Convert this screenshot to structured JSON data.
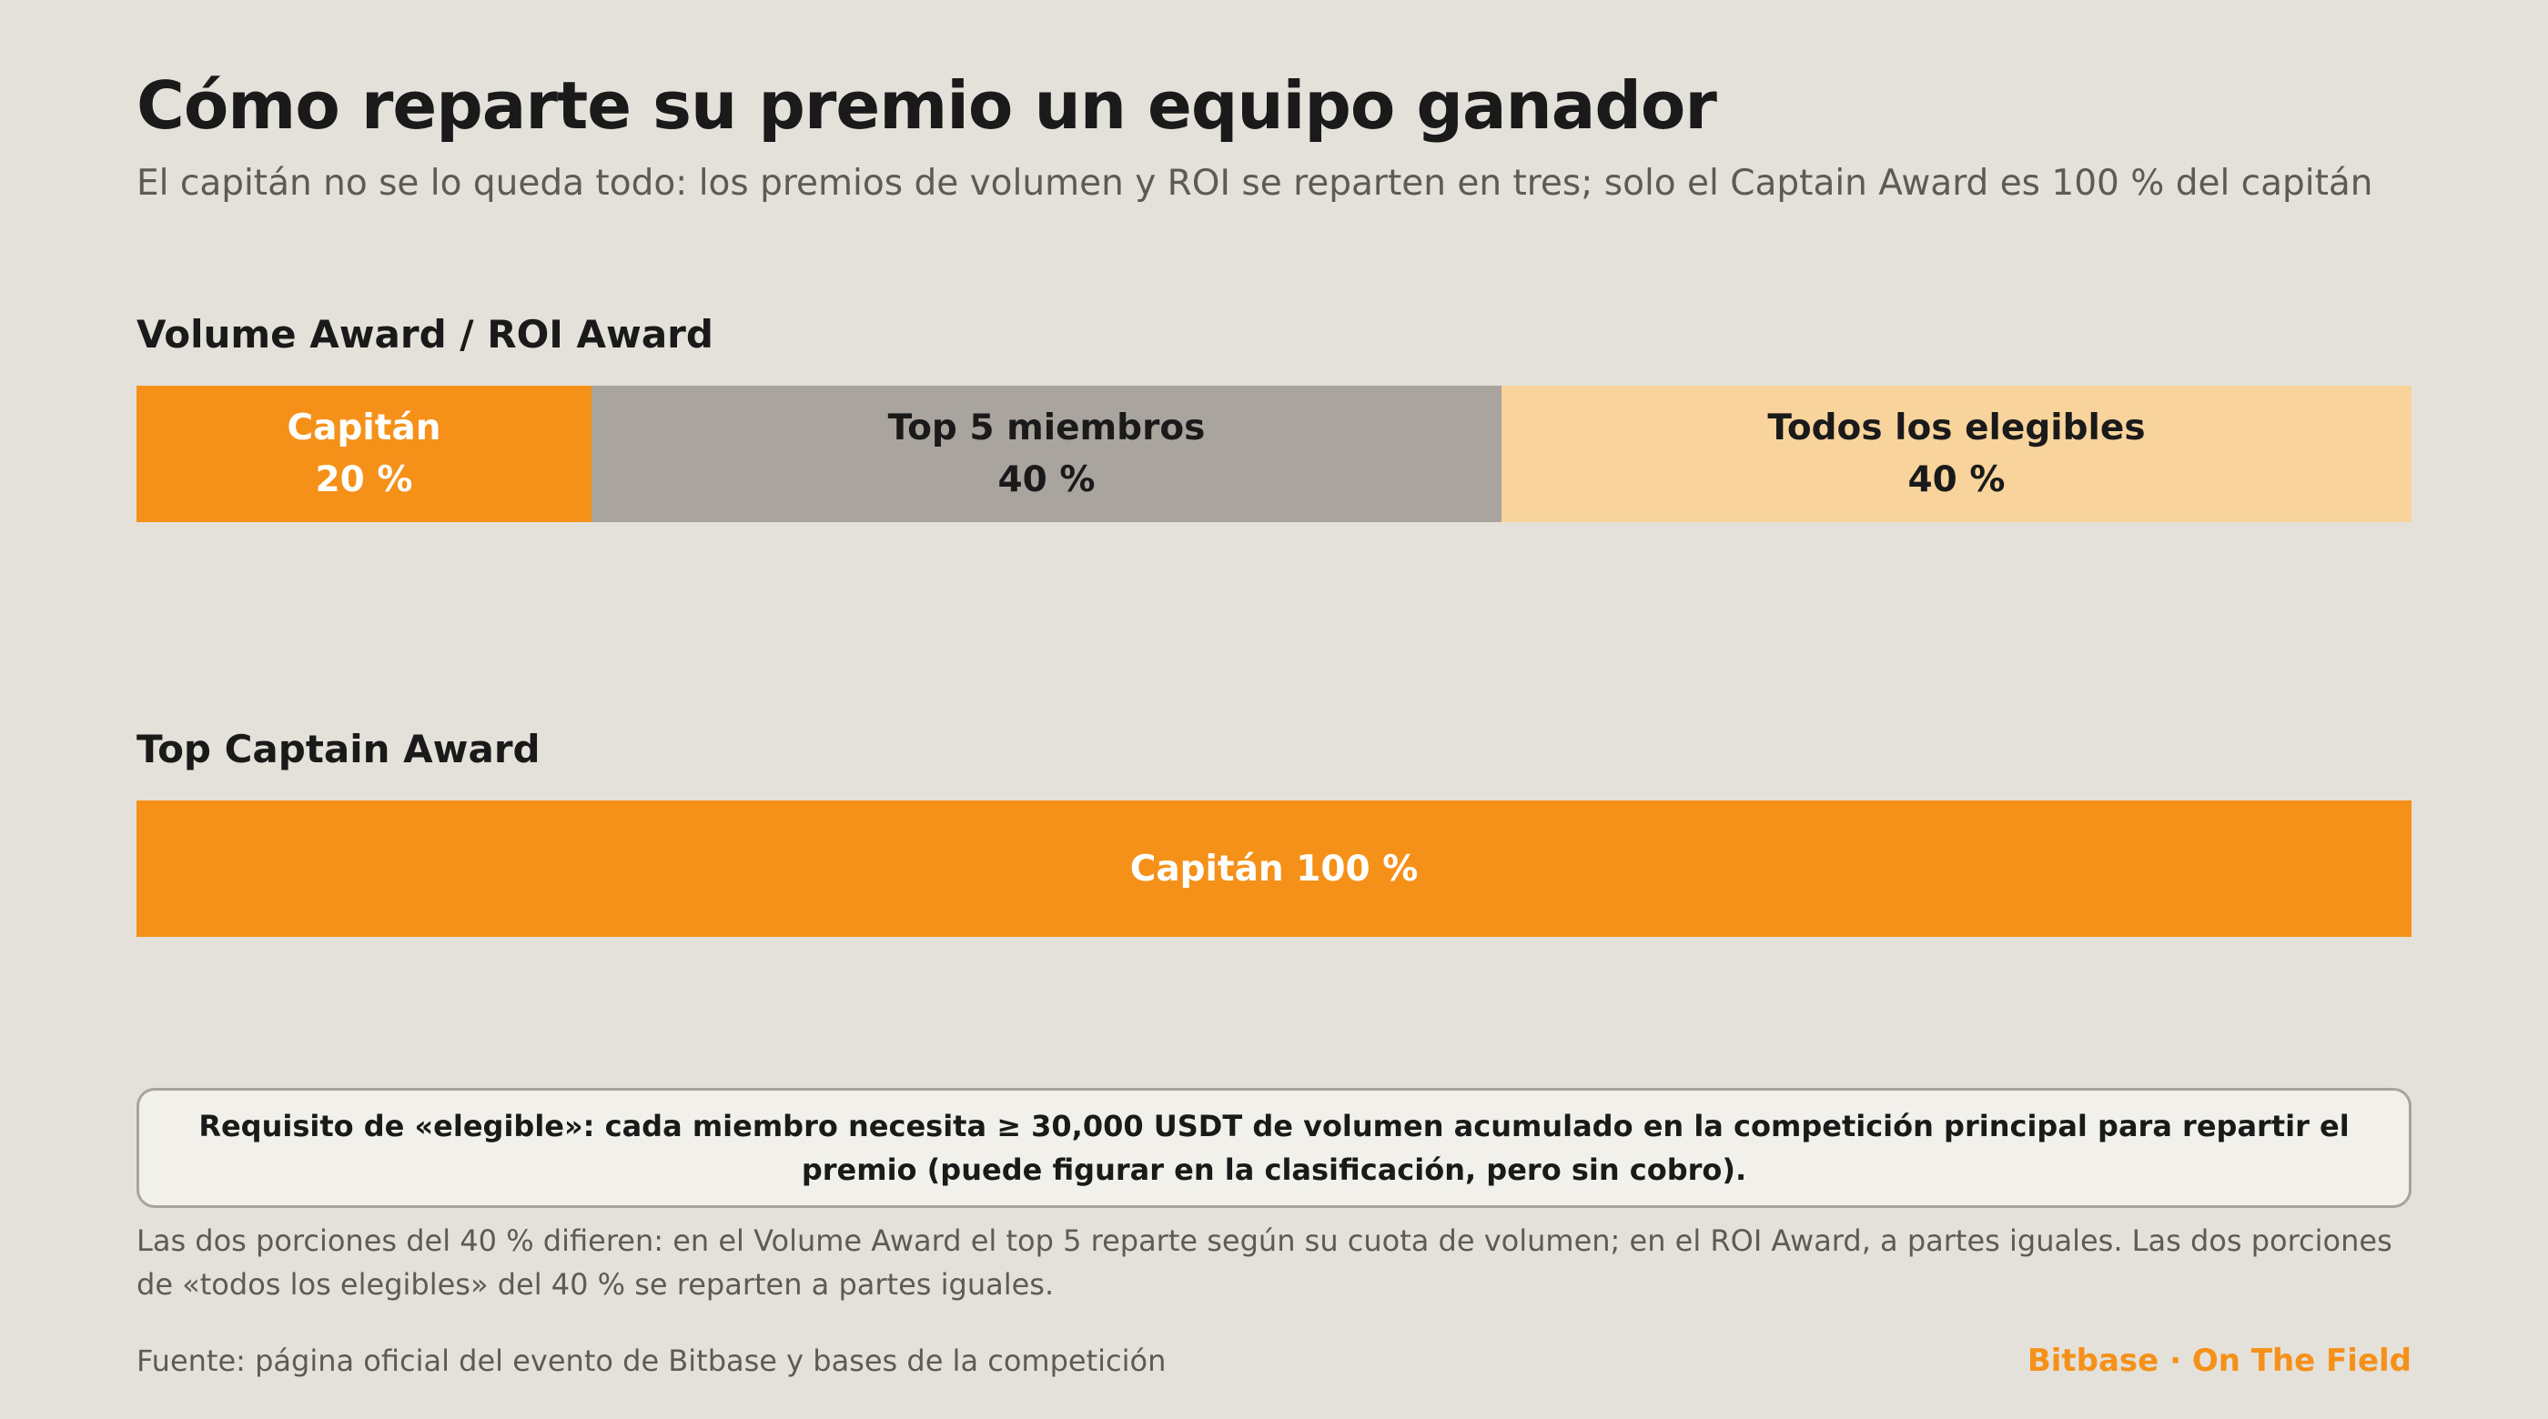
{
  "title": "Cómo reparte su premio un equipo ganador",
  "subtitle": "El capitán no se lo queda todo: los premios de volumen y ROI se reparten en tres; solo el Captain Award es 100 % del capitán",
  "colors": {
    "background": "#e4e0da",
    "captain": "#f59019",
    "top5": "#a9a49e",
    "eligible": "#f9d39c",
    "brand": "#f59019"
  },
  "chart_data": [
    {
      "type": "bar",
      "orientation": "horizontal-stacked",
      "title": "Volume Award / ROI Award",
      "unit": "%",
      "segments": [
        {
          "name": "Capitán",
          "value": 20,
          "value_label": "20 %",
          "color": "#f59019",
          "text_color": "#ffffff"
        },
        {
          "name": "Top 5 miembros",
          "value": 40,
          "value_label": "40 %",
          "color": "#a9a49e",
          "text_color": "#1a1a1a"
        },
        {
          "name": "Todos los elegibles",
          "value": 40,
          "value_label": "40 %",
          "color": "#f9d39c",
          "text_color": "#1a1a1a"
        }
      ]
    },
    {
      "type": "bar",
      "orientation": "horizontal-stacked",
      "title": "Top Captain Award",
      "unit": "%",
      "segments": [
        {
          "name": "Capitán 100 %",
          "value": 100,
          "value_label": "",
          "color": "#f59019",
          "text_color": "#ffffff"
        }
      ]
    }
  ],
  "note": "Requisito de «elegible»: cada miembro necesita ≥ 30,000 USDT de volumen acumulado en la competición principal para repartir el premio (puede figurar en la clasificación, pero sin cobro).",
  "footnote": "Las dos porciones del 40 % difieren: en el Volume Award el top 5 reparte según su cuota de volumen; en el ROI Award, a partes iguales. Las dos porciones de «todos los elegibles» del 40 % se reparten a partes iguales.",
  "source": "Fuente: página oficial del evento de Bitbase y bases de la competición",
  "brand": "Bitbase · On The Field"
}
